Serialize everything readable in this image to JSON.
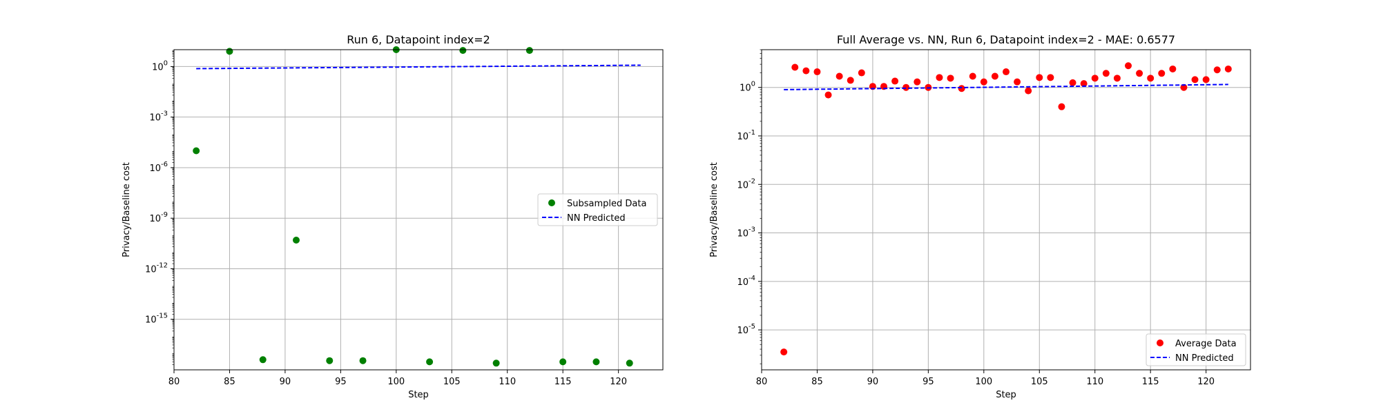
{
  "chart_data": [
    {
      "type": "scatter",
      "title": "Run 6, Datapoint index=2",
      "xlabel": "Step",
      "ylabel": "Privacy/Baseline cost",
      "yscale": "log",
      "xlim": [
        80,
        124
      ],
      "ylim": [
        1e-18,
        10.0
      ],
      "grid": true,
      "legend_position": "center-right",
      "x_ticks": [
        "80",
        "85",
        "90",
        "95",
        "100",
        "105",
        "110",
        "115",
        "120"
      ],
      "y_ticks": [
        "10^{0}",
        "10^{-3}",
        "10^{-6}",
        "10^{-9}",
        "10^{-12}",
        "10^{-15}"
      ],
      "series": [
        {
          "name": "Subsampled Data",
          "kind": "scatter",
          "color": "#008000",
          "x": [
            82,
            85,
            88,
            91,
            94,
            97,
            100,
            103,
            106,
            109,
            112,
            115,
            118,
            121
          ],
          "y": [
            1e-05,
            8,
            4e-18,
            5e-11,
            3.5e-18,
            3.5e-18,
            10,
            3e-18,
            9,
            2.5e-18,
            9,
            3e-18,
            3e-18,
            2.5e-18
          ]
        },
        {
          "name": "NN Predicted",
          "kind": "line",
          "style": "dashed",
          "color": "#0000ff",
          "x": [
            82,
            122
          ],
          "y": [
            0.75,
            1.2
          ]
        }
      ]
    },
    {
      "type": "scatter",
      "title": "Full Average vs. NN, Run 6, Datapoint index=2 - MAE: 0.6577",
      "xlabel": "Step",
      "ylabel": "Privacy/Baseline cost",
      "yscale": "log",
      "xlim": [
        80,
        124
      ],
      "ylim": [
        1.5e-06,
        6
      ],
      "grid": true,
      "legend_position": "lower-right",
      "x_ticks": [
        "80",
        "85",
        "90",
        "95",
        "100",
        "105",
        "110",
        "115",
        "120"
      ],
      "y_ticks": [
        "10^{0}",
        "10^{-1}",
        "10^{-2}",
        "10^{-3}",
        "10^{-4}",
        "10^{-5}"
      ],
      "series": [
        {
          "name": "Average Data",
          "kind": "scatter",
          "color": "#ff0000",
          "x": [
            82,
            83,
            84,
            85,
            86,
            87,
            88,
            89,
            90,
            91,
            92,
            93,
            94,
            95,
            96,
            97,
            98,
            99,
            100,
            101,
            102,
            103,
            104,
            105,
            106,
            107,
            108,
            109,
            110,
            111,
            112,
            113,
            114,
            115,
            116,
            117,
            118,
            119,
            120,
            121,
            122
          ],
          "y": [
            3.5e-06,
            2.6,
            2.2,
            2.1,
            0.7,
            1.7,
            1.4,
            2.0,
            1.05,
            1.05,
            1.35,
            1.0,
            1.3,
            1.0,
            1.6,
            1.55,
            0.95,
            1.7,
            1.3,
            1.7,
            2.1,
            1.3,
            0.85,
            1.6,
            1.6,
            0.4,
            1.25,
            1.2,
            1.55,
            1.95,
            1.55,
            2.8,
            1.95,
            1.55,
            1.95,
            2.4,
            1.0,
            1.45,
            1.45,
            2.3,
            2.4
          ]
        },
        {
          "name": "NN Predicted",
          "kind": "line",
          "style": "dashed",
          "color": "#0000ff",
          "x": [
            82,
            122
          ],
          "y": [
            0.9,
            1.15
          ]
        }
      ]
    }
  ]
}
